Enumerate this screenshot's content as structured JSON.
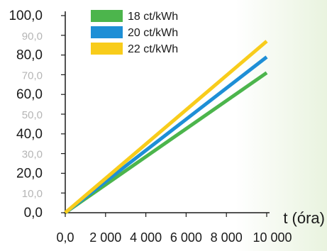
{
  "chart_data": {
    "type": "line",
    "title": "",
    "xlabel": "t (óra)",
    "ylabel": "",
    "xlim": [
      0,
      10000
    ],
    "ylim": [
      0,
      100
    ],
    "x_tick_labels": [
      "0,0",
      "2 000",
      "4 000",
      "6 000",
      "8 000",
      "10 000"
    ],
    "x_tick_values": [
      0,
      2000,
      4000,
      6000,
      8000,
      10000
    ],
    "y_tick_labels": [
      "0,0",
      "10,0",
      "20,0",
      "30,0",
      "40,0",
      "50,0",
      "60,0",
      "70,0",
      "80,0",
      "90,0",
      "100,0"
    ],
    "y_tick_values": [
      0,
      10,
      20,
      30,
      40,
      50,
      60,
      70,
      80,
      90,
      100
    ],
    "y_tick_emphasis": [
      true,
      false,
      true,
      false,
      true,
      false,
      true,
      false,
      true,
      false,
      true
    ],
    "grid": false,
    "legend_position": "top",
    "series": [
      {
        "name": "18 ct/kWh",
        "color": "#4cb54c",
        "x": [
          0,
          10000
        ],
        "y": [
          0,
          71
        ]
      },
      {
        "name": "20 ct/kWh",
        "color": "#1e8fd6",
        "x": [
          0,
          10000
        ],
        "y": [
          0,
          79
        ]
      },
      {
        "name": "22 ct/kWh",
        "color": "#f8cc1b",
        "x": [
          0,
          10000
        ],
        "y": [
          0,
          87
        ]
      }
    ],
    "colors": {
      "background_left": "#ffffff",
      "background_right": "#e9f3df",
      "axis": "#1a1a1a",
      "tick_label_major": "#1a1a1a",
      "tick_label_minor": "#b5b5b5"
    }
  }
}
